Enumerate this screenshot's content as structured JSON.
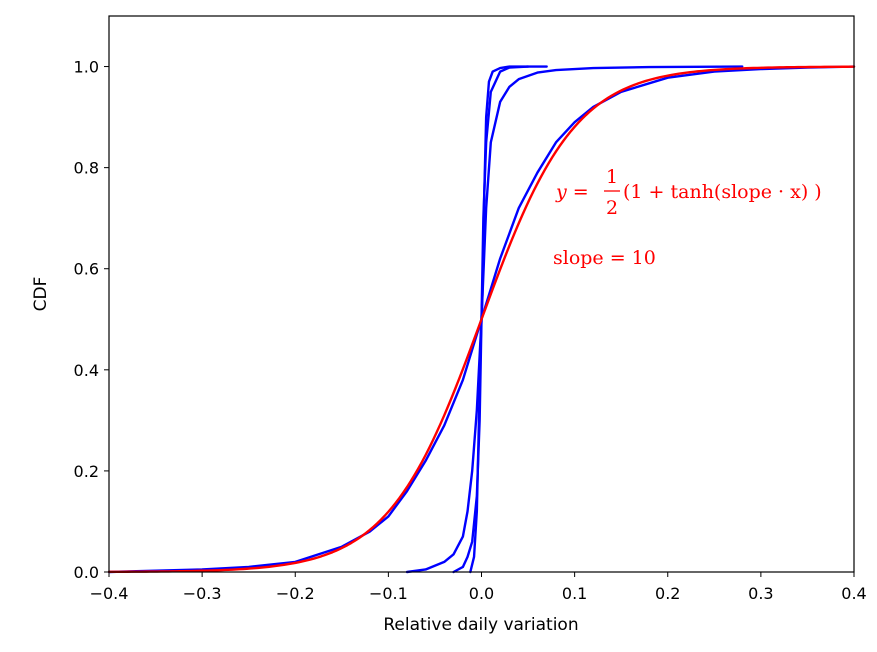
{
  "chart_data": {
    "type": "line",
    "title": "",
    "xlabel": "Relative daily variation",
    "ylabel": "CDF",
    "xlim": [
      -0.4,
      0.4
    ],
    "ylim": [
      0.0,
      1.1
    ],
    "xticks": [
      -0.4,
      -0.3,
      -0.2,
      -0.1,
      0.0,
      0.1,
      0.2,
      0.3,
      0.4
    ],
    "xtick_labels": [
      "−0.4",
      "−0.3",
      "−0.2",
      "−0.1",
      "0.0",
      "0.1",
      "0.2",
      "0.3",
      "0.4"
    ],
    "yticks": [
      0.0,
      0.2,
      0.4,
      0.6,
      0.8,
      1.0
    ],
    "ytick_labels": [
      "0.0",
      "0.2",
      "0.4",
      "0.6",
      "0.8",
      "1.0"
    ],
    "grid": false,
    "series": [
      {
        "color": "#0000ff",
        "x": [
          -0.012,
          -0.008,
          -0.005,
          -0.003,
          -0.001,
          0.0,
          0.001,
          0.003,
          0.005,
          0.008,
          0.012,
          0.02,
          0.03,
          0.05,
          0.07
        ],
        "y": [
          0.0,
          0.03,
          0.12,
          0.28,
          0.45,
          0.5,
          0.55,
          0.75,
          0.9,
          0.97,
          0.99,
          0.997,
          1.0,
          1.0,
          1.0
        ]
      },
      {
        "color": "#0000ff",
        "x": [
          -0.03,
          -0.02,
          -0.015,
          -0.01,
          -0.005,
          -0.002,
          0.0,
          0.002,
          0.005,
          0.01,
          0.02,
          0.03,
          0.05
        ],
        "y": [
          0.0,
          0.01,
          0.03,
          0.06,
          0.15,
          0.3,
          0.5,
          0.7,
          0.85,
          0.95,
          0.99,
          0.998,
          1.0
        ]
      },
      {
        "color": "#0000ff",
        "x": [
          -0.08,
          -0.06,
          -0.04,
          -0.03,
          -0.02,
          -0.015,
          -0.01,
          -0.005,
          0.0,
          0.005,
          0.01,
          0.02,
          0.03,
          0.04,
          0.06,
          0.08,
          0.12,
          0.18,
          0.28
        ],
        "y": [
          0.0,
          0.005,
          0.02,
          0.035,
          0.07,
          0.12,
          0.2,
          0.32,
          0.5,
          0.72,
          0.85,
          0.93,
          0.96,
          0.975,
          0.988,
          0.993,
          0.997,
          0.999,
          1.0
        ]
      },
      {
        "color": "#0000ff",
        "x": [
          -0.4,
          -0.3,
          -0.25,
          -0.2,
          -0.15,
          -0.12,
          -0.1,
          -0.08,
          -0.06,
          -0.04,
          -0.02,
          0.0,
          0.02,
          0.04,
          0.06,
          0.08,
          0.1,
          0.12,
          0.15,
          0.2,
          0.25,
          0.3,
          0.35,
          0.4
        ],
        "y": [
          0.0,
          0.005,
          0.01,
          0.02,
          0.05,
          0.08,
          0.11,
          0.16,
          0.22,
          0.29,
          0.38,
          0.5,
          0.62,
          0.72,
          0.79,
          0.85,
          0.89,
          0.92,
          0.95,
          0.978,
          0.99,
          0.995,
          0.998,
          1.0
        ]
      },
      {
        "color": "#ff0000",
        "function": "0.5*(1+tanh(10*x))",
        "slope": 10
      }
    ],
    "annotations": {
      "formula": {
        "lhs": "y =",
        "numerator": "1",
        "denominator": "2",
        "rhs": "(1 + tanh(slope · x) )",
        "color": "#ff0000"
      },
      "slope_text": "slope = 10"
    }
  }
}
